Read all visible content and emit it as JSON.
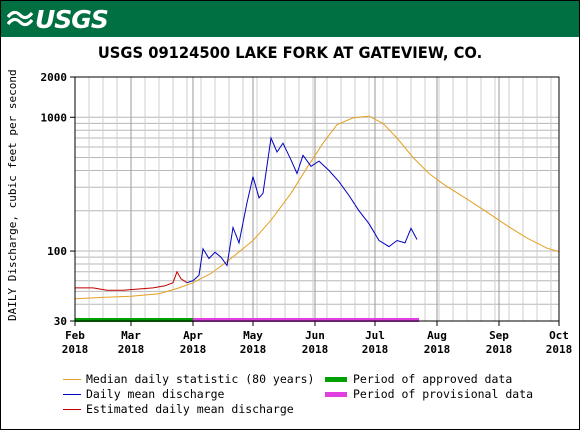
{
  "header": {
    "logo_text": "USGS",
    "brand_color": "#006f41"
  },
  "chart_data": {
    "type": "line",
    "title": "USGS 09124500 LAKE FORK AT GATEVIEW, CO.",
    "ylabel": "DAILY Discharge, cubic feet per second",
    "xlabel": "",
    "y_scale": "log",
    "ylim": [
      30,
      2000
    ],
    "y_ticks": [
      "2000",
      "1000",
      "100",
      "30"
    ],
    "x_ticks": [
      {
        "month": "Feb",
        "year": "2018"
      },
      {
        "month": "Mar",
        "year": "2018"
      },
      {
        "month": "Apr",
        "year": "2018"
      },
      {
        "month": "May",
        "year": "2018"
      },
      {
        "month": "Jun",
        "year": "2018"
      },
      {
        "month": "Jul",
        "year": "2018"
      },
      {
        "month": "Aug",
        "year": "2018"
      },
      {
        "month": "Sep",
        "year": "2018"
      },
      {
        "month": "Oct",
        "year": "2018"
      }
    ],
    "xlim": [
      "2018-02-01",
      "2018-10-01"
    ],
    "grid": true,
    "series": [
      {
        "name": "Median daily statistic (80 years)",
        "color": "#e5a020",
        "points": [
          [
            "2018-02-01",
            44
          ],
          [
            "2018-02-15",
            45
          ],
          [
            "2018-03-01",
            46
          ],
          [
            "2018-03-15",
            48
          ],
          [
            "2018-03-25",
            53
          ],
          [
            "2018-04-01",
            58
          ],
          [
            "2018-04-10",
            68
          ],
          [
            "2018-04-20",
            88
          ],
          [
            "2018-05-01",
            120
          ],
          [
            "2018-05-10",
            170
          ],
          [
            "2018-05-20",
            270
          ],
          [
            "2018-05-28",
            420
          ],
          [
            "2018-06-05",
            640
          ],
          [
            "2018-06-12",
            880
          ],
          [
            "2018-06-20",
            990
          ],
          [
            "2018-06-28",
            1020
          ],
          [
            "2018-07-05",
            900
          ],
          [
            "2018-07-12",
            700
          ],
          [
            "2018-07-20",
            500
          ],
          [
            "2018-07-28",
            380
          ],
          [
            "2018-08-05",
            310
          ],
          [
            "2018-08-15",
            250
          ],
          [
            "2018-08-25",
            200
          ],
          [
            "2018-09-05",
            155
          ],
          [
            "2018-09-15",
            125
          ],
          [
            "2018-09-25",
            105
          ],
          [
            "2018-10-01",
            99
          ]
        ]
      },
      {
        "name": "Daily mean discharge",
        "color": "#0000c0",
        "points": [
          [
            "2018-03-29",
            58
          ],
          [
            "2018-04-01",
            60
          ],
          [
            "2018-04-04",
            66
          ],
          [
            "2018-04-06",
            104
          ],
          [
            "2018-04-09",
            88
          ],
          [
            "2018-04-12",
            98
          ],
          [
            "2018-04-15",
            90
          ],
          [
            "2018-04-18",
            78
          ],
          [
            "2018-04-21",
            150
          ],
          [
            "2018-04-24",
            115
          ],
          [
            "2018-04-28",
            230
          ],
          [
            "2018-05-01",
            360
          ],
          [
            "2018-05-04",
            250
          ],
          [
            "2018-05-06",
            270
          ],
          [
            "2018-05-10",
            700
          ],
          [
            "2018-05-13",
            550
          ],
          [
            "2018-05-16",
            640
          ],
          [
            "2018-05-20",
            480
          ],
          [
            "2018-05-23",
            380
          ],
          [
            "2018-05-26",
            520
          ],
          [
            "2018-05-30",
            430
          ],
          [
            "2018-06-03",
            470
          ],
          [
            "2018-06-08",
            400
          ],
          [
            "2018-06-13",
            330
          ],
          [
            "2018-06-18",
            260
          ],
          [
            "2018-06-23",
            200
          ],
          [
            "2018-06-28",
            160
          ],
          [
            "2018-07-03",
            120
          ],
          [
            "2018-07-08",
            108
          ],
          [
            "2018-07-12",
            120
          ],
          [
            "2018-07-16",
            115
          ],
          [
            "2018-07-19",
            148
          ],
          [
            "2018-07-22",
            122
          ]
        ]
      },
      {
        "name": "Estimated daily mean discharge",
        "color": "#c00000",
        "points": [
          [
            "2018-02-01",
            53
          ],
          [
            "2018-02-10",
            53
          ],
          [
            "2018-02-17",
            51
          ],
          [
            "2018-02-25",
            51
          ],
          [
            "2018-03-05",
            52
          ],
          [
            "2018-03-12",
            53
          ],
          [
            "2018-03-18",
            55
          ],
          [
            "2018-03-22",
            58
          ],
          [
            "2018-03-24",
            70
          ],
          [
            "2018-03-26",
            62
          ],
          [
            "2018-03-29",
            58
          ]
        ]
      }
    ],
    "periods": [
      {
        "name": "Period of approved data",
        "color": "#00a000",
        "start": "2018-02-01",
        "end": "2018-04-01"
      },
      {
        "name": "Period of provisional data",
        "color": "#e040e0",
        "start": "2018-04-01",
        "end": "2018-07-23"
      }
    ]
  },
  "legend": {
    "median": "Median daily statistic (80 years)",
    "daily": "Daily mean discharge",
    "estimated": "Estimated daily mean discharge",
    "approved": "Period of approved data",
    "provisional": "Period of provisional data"
  }
}
